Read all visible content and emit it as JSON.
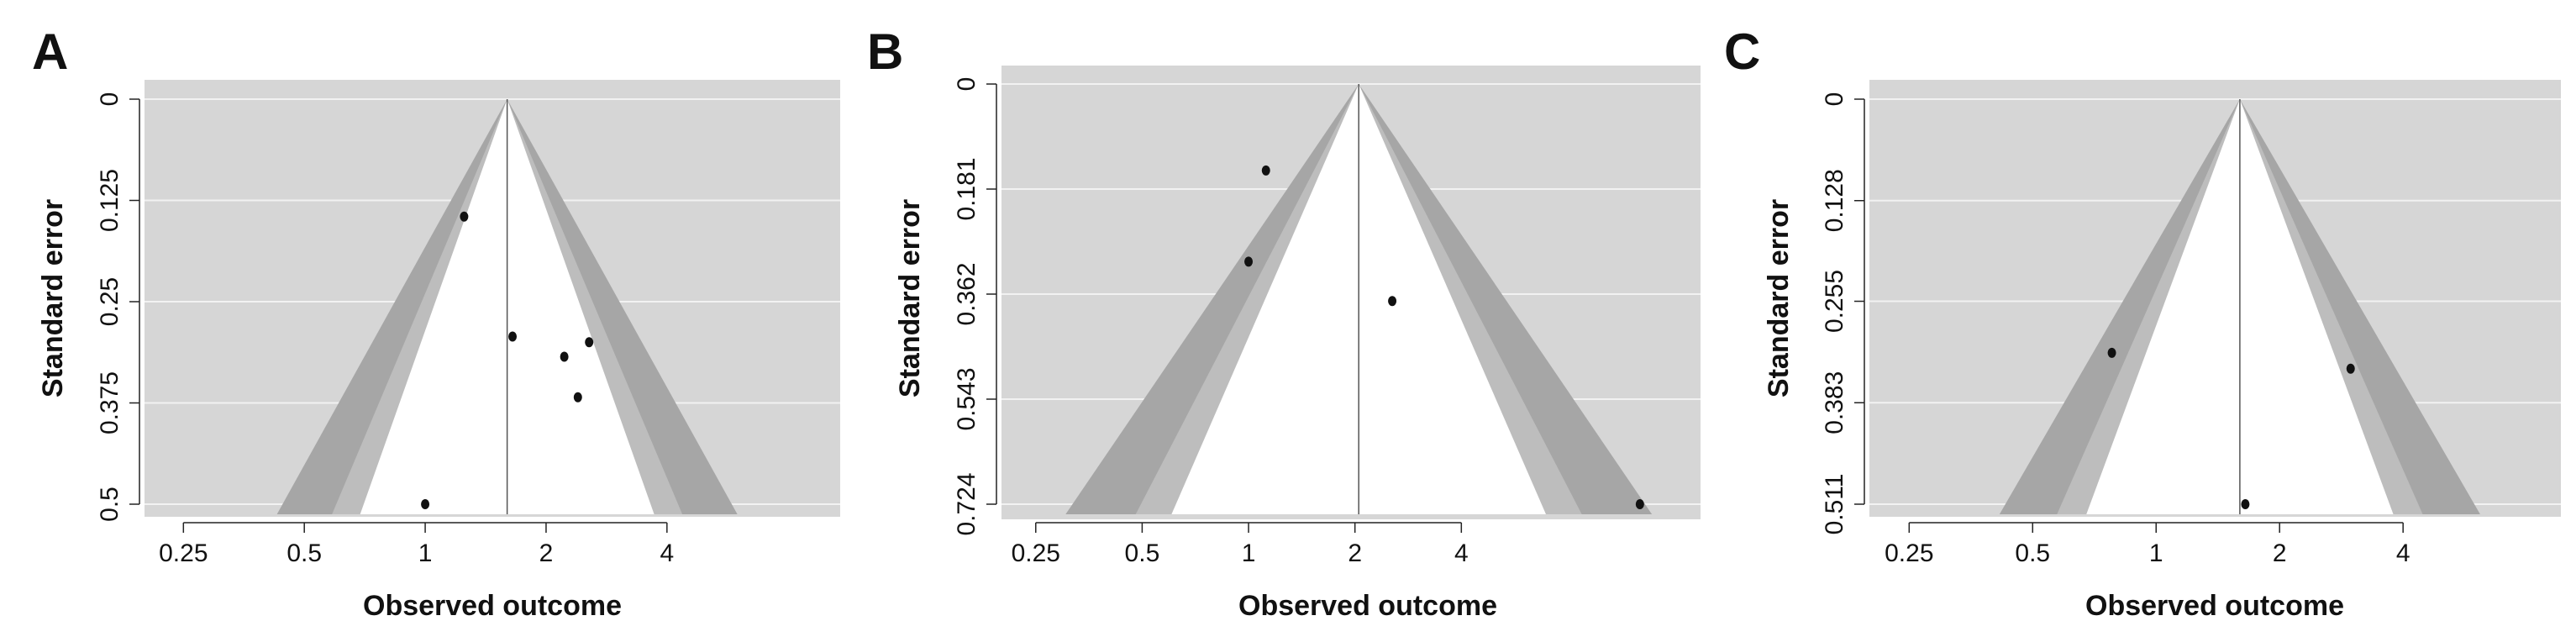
{
  "chart_data": [
    {
      "type": "scatter",
      "subtype": "funnel",
      "panel_label": "A",
      "xlabel": "Observed outcome",
      "ylabel": "Standard error",
      "x_scale": "log",
      "x_ticks": [
        0.25,
        0.5,
        1,
        2,
        4
      ],
      "x_tick_labels": [
        "0.25",
        "0.5",
        "1",
        "2",
        "4"
      ],
      "x_range": [
        0.2,
        10.8
      ],
      "y_ticks": [
        0,
        0.125,
        0.25,
        0.375,
        0.5
      ],
      "y_tick_labels": [
        "0",
        "0.125",
        "0.25",
        "0.375",
        "0.5"
      ],
      "y_range": [
        0,
        0.5
      ],
      "y_reversed": true,
      "center": 1.6,
      "contour_z": [
        1.645,
        1.96,
        2.576
      ],
      "points": [
        {
          "x": 1.25,
          "y": 0.145
        },
        {
          "x": 1.65,
          "y": 0.293
        },
        {
          "x": 2.22,
          "y": 0.318
        },
        {
          "x": 2.56,
          "y": 0.3
        },
        {
          "x": 2.4,
          "y": 0.368
        },
        {
          "x": 1.0,
          "y": 0.5
        }
      ]
    },
    {
      "type": "scatter",
      "subtype": "funnel",
      "panel_label": "B",
      "xlabel": "Observed outcome",
      "ylabel": "Standard error",
      "x_scale": "log",
      "x_ticks": [
        0.25,
        0.5,
        1,
        2,
        4
      ],
      "x_tick_labels": [
        "0.25",
        "0.5",
        "1",
        "2",
        "4"
      ],
      "x_range": [
        0.2,
        19
      ],
      "y_ticks": [
        0,
        0.181,
        0.362,
        0.543,
        0.724
      ],
      "y_tick_labels": [
        "0",
        "0.181",
        "0.362",
        "0.543",
        "0.724"
      ],
      "y_range": [
        0,
        0.724
      ],
      "y_reversed": true,
      "center": 2.05,
      "contour_z": [
        1.645,
        1.96,
        2.576
      ],
      "points": [
        {
          "x": 1.12,
          "y": 0.149
        },
        {
          "x": 1.0,
          "y": 0.306
        },
        {
          "x": 2.55,
          "y": 0.374
        },
        {
          "x": 12.8,
          "y": 0.724
        }
      ]
    },
    {
      "type": "scatter",
      "subtype": "funnel",
      "panel_label": "C",
      "xlabel": "Observed outcome",
      "ylabel": "Standard error",
      "x_scale": "log",
      "x_ticks": [
        0.25,
        0.5,
        1,
        2,
        4
      ],
      "x_tick_labels": [
        "0.25",
        "0.5",
        "1",
        "2",
        "4"
      ],
      "x_range": [
        0.2,
        9.7
      ],
      "y_ticks": [
        0,
        0.128,
        0.255,
        0.383,
        0.511
      ],
      "y_tick_labels": [
        "0",
        "0.128",
        "0.255",
        "0.383",
        "0.511"
      ],
      "y_range": [
        0,
        0.511
      ],
      "y_reversed": true,
      "center": 1.6,
      "contour_z": [
        1.645,
        1.96,
        2.576
      ],
      "points": [
        {
          "x": 0.78,
          "y": 0.32
        },
        {
          "x": 2.98,
          "y": 0.34
        },
        {
          "x": 1.65,
          "y": 0.511
        }
      ]
    }
  ]
}
